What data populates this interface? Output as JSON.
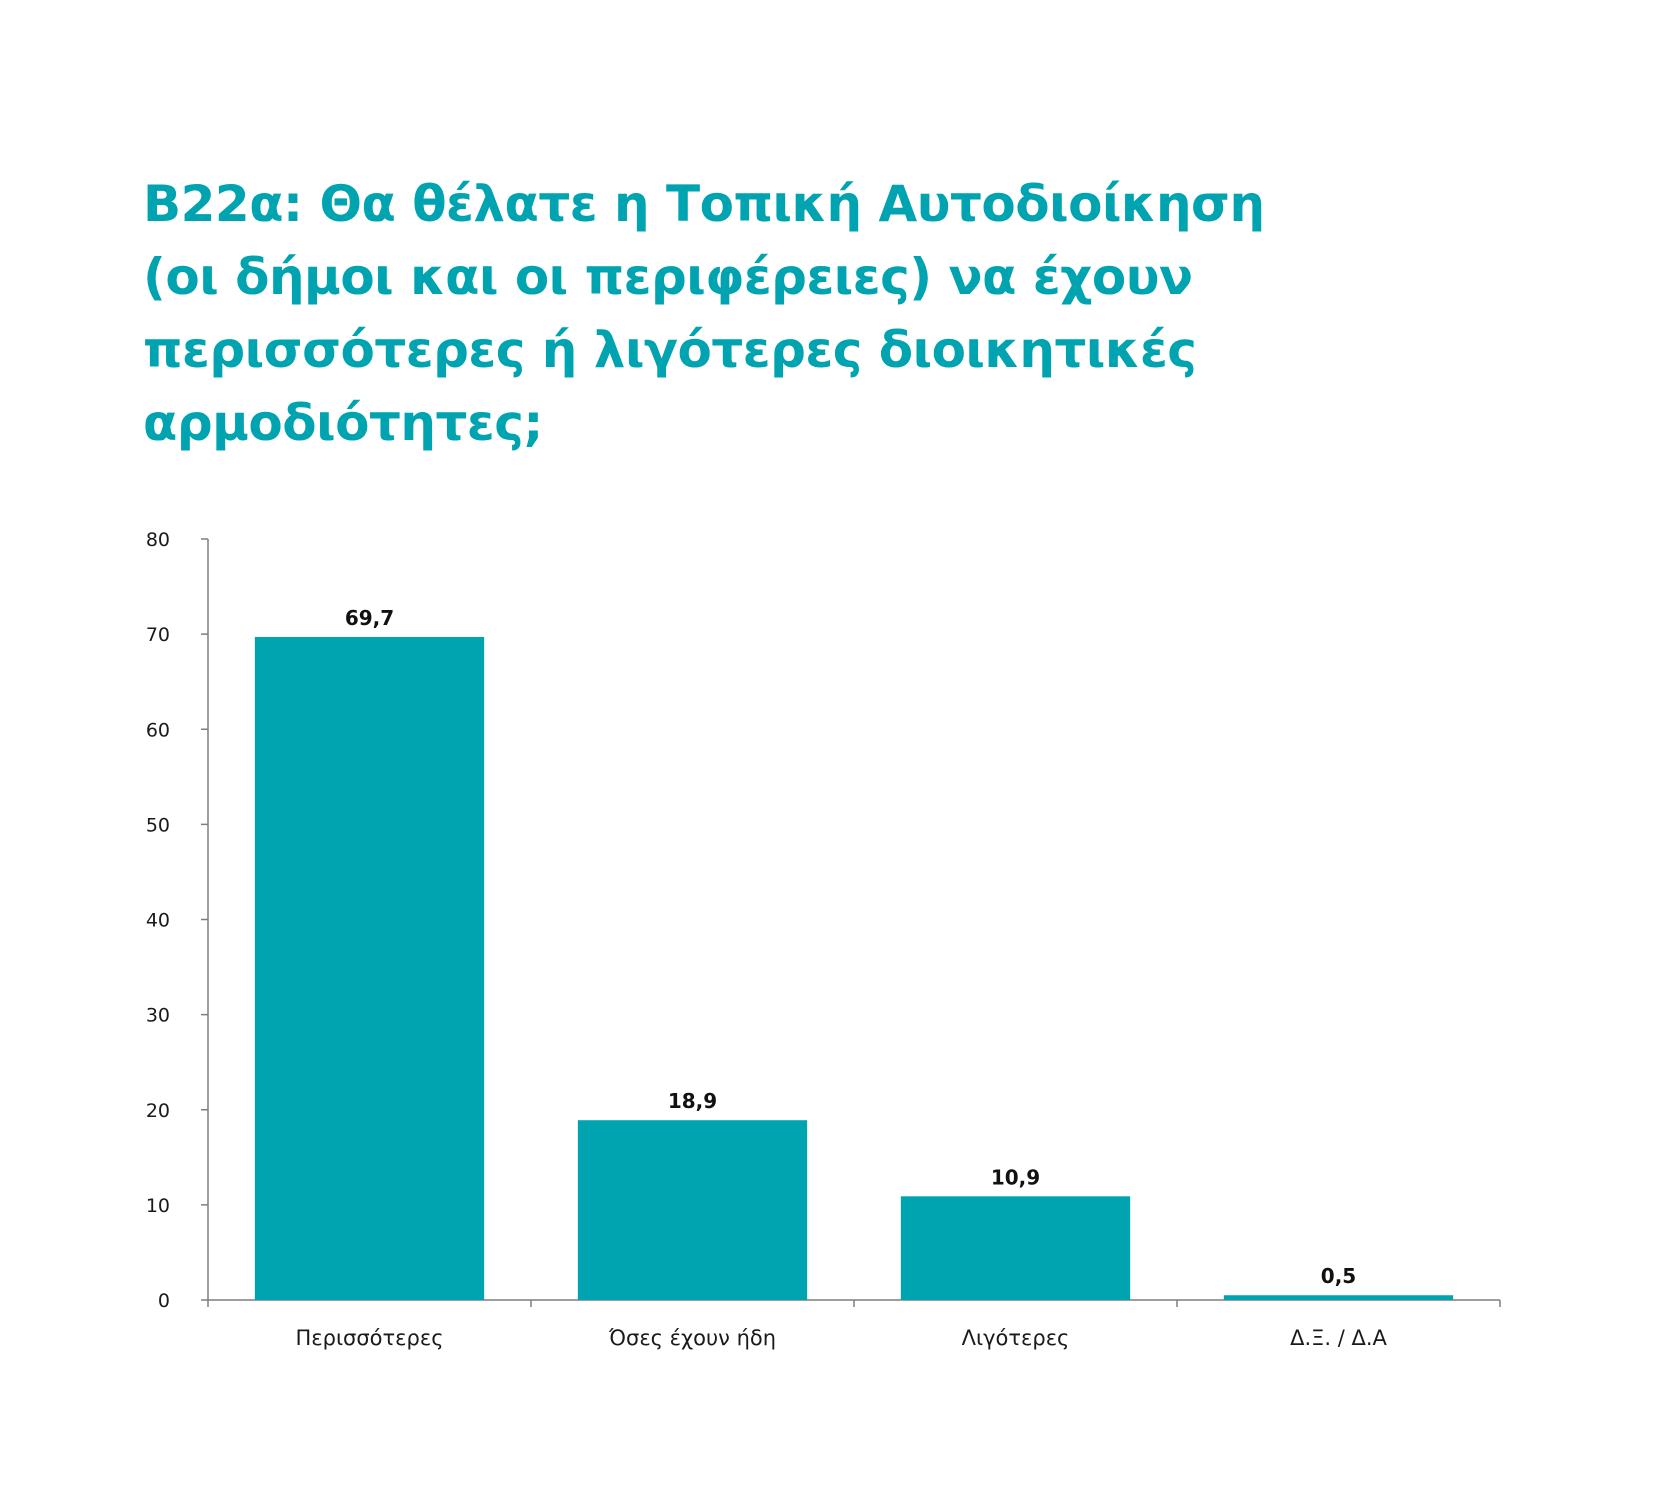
{
  "title_lines": [
    "B22α: Θα θέλατε η Τοπική Αυτοδιοίκηση",
    "(οι δήμοι και οι περιφέρειες) να έχουν",
    "περισσότερες ή λιγότερες διοικητικές",
    "αρμοδιότητες;"
  ],
  "colors": {
    "accent": "#00a3b0",
    "bar": "#00a3b0",
    "axis": "#7f7f7f"
  },
  "chart_data": {
    "type": "bar",
    "title": "B22α: Θα θέλατε η Τοπική Αυτοδιοίκηση (οι δήμοι και οι περιφέρειες) να έχουν περισσότερες ή λιγότερες διοικητικές αρμοδιότητες;",
    "categories": [
      "Περισσότερες",
      "Όσες έχουν ήδη",
      "Λιγότερες",
      "Δ.Ξ. / Δ.Α"
    ],
    "values": [
      69.7,
      18.9,
      10.9,
      0.5
    ],
    "value_labels": [
      "69,7",
      "18,9",
      "10,9",
      "0,5"
    ],
    "xlabel": "",
    "ylabel": "",
    "ylim": [
      0,
      80
    ],
    "yticks": [
      0,
      10,
      20,
      30,
      40,
      50,
      60,
      70,
      80
    ],
    "grid": false,
    "legend": "none"
  }
}
